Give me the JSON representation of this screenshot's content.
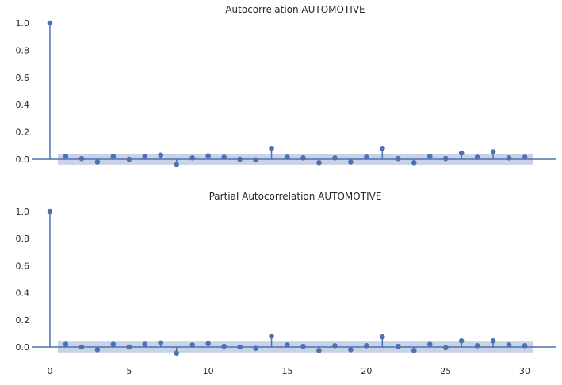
{
  "chart_data": [
    {
      "type": "stem",
      "title": "Autocorrelation AUTOMOTIVE",
      "xlim": [
        -1,
        32
      ],
      "ylim": [
        -0.1,
        1.05
      ],
      "yticks": [
        0.0,
        0.2,
        0.4,
        0.6,
        0.8,
        1.0
      ],
      "ytick_labels": [
        "0.0",
        "0.2",
        "0.4",
        "0.6",
        "0.8",
        "1.0"
      ],
      "show_xticks": false,
      "confidence_band": [
        -0.04,
        0.04
      ],
      "band_x_range": [
        0.5,
        30.5
      ],
      "x": [
        0,
        1,
        2,
        3,
        4,
        5,
        6,
        7,
        8,
        9,
        10,
        11,
        12,
        13,
        14,
        15,
        16,
        17,
        18,
        19,
        20,
        21,
        22,
        23,
        24,
        25,
        26,
        27,
        28,
        29,
        30
      ],
      "values": [
        1.0,
        0.02,
        0.005,
        -0.02,
        0.02,
        0.0,
        0.02,
        0.03,
        -0.04,
        0.01,
        0.025,
        0.015,
        0.0,
        -0.005,
        0.08,
        0.015,
        0.01,
        -0.025,
        0.01,
        -0.02,
        0.015,
        0.08,
        0.005,
        -0.025,
        0.02,
        0.005,
        0.045,
        0.015,
        0.055,
        0.01,
        0.015
      ],
      "grid": false,
      "color": "#4c72b0",
      "band_color": "#c9d3e8"
    },
    {
      "type": "stem",
      "title": "Partial Autocorrelation AUTOMOTIVE",
      "xlim": [
        -1,
        32
      ],
      "ylim": [
        -0.1,
        1.05
      ],
      "yticks": [
        0.0,
        0.2,
        0.4,
        0.6,
        0.8,
        1.0
      ],
      "ytick_labels": [
        "0.0",
        "0.2",
        "0.4",
        "0.6",
        "0.8",
        "1.0"
      ],
      "xticks": [
        0,
        5,
        10,
        15,
        20,
        25,
        30
      ],
      "xtick_labels": [
        "0",
        "5",
        "10",
        "15",
        "20",
        "25",
        "30"
      ],
      "confidence_band": [
        -0.04,
        0.04
      ],
      "band_x_range": [
        0.5,
        30.5
      ],
      "x": [
        0,
        1,
        2,
        3,
        4,
        5,
        6,
        7,
        8,
        9,
        10,
        11,
        12,
        13,
        14,
        15,
        16,
        17,
        18,
        19,
        20,
        21,
        22,
        23,
        24,
        25,
        26,
        27,
        28,
        29,
        30
      ],
      "values": [
        1.0,
        0.02,
        0.0,
        -0.02,
        0.02,
        0.0,
        0.02,
        0.03,
        -0.045,
        0.015,
        0.025,
        0.005,
        0.0,
        -0.01,
        0.08,
        0.015,
        0.005,
        -0.025,
        0.01,
        -0.02,
        0.01,
        0.075,
        0.005,
        -0.025,
        0.02,
        -0.005,
        0.045,
        0.01,
        0.045,
        0.015,
        0.01
      ],
      "grid": false,
      "color": "#4c72b0",
      "band_color": "#c9d3e8"
    }
  ]
}
